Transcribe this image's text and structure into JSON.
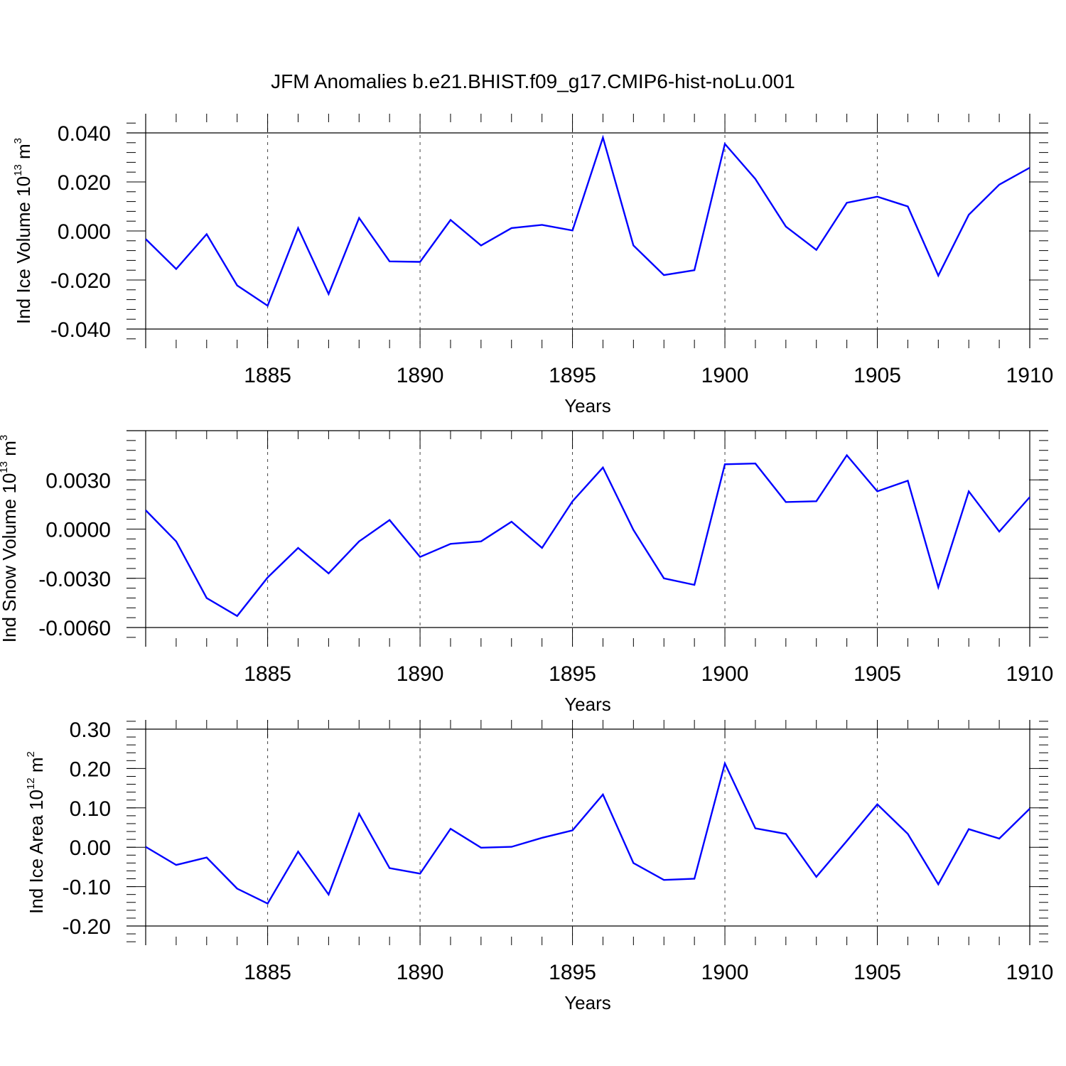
{
  "title": "JFM Anomalies b.e21.BHIST.f09_g17.CMIP6-hist-noLu.001",
  "line_color": "#0000ff",
  "chart_data": [
    {
      "type": "line",
      "ylabel": {
        "text": "Ind Ice Volume 10",
        "exp": "13",
        "unit": " m",
        "unit_exp": "3"
      },
      "xlabel": "Years",
      "xlim": [
        1881,
        1910
      ],
      "ylim": [
        -0.04,
        0.04
      ],
      "yticks": [
        -0.04,
        -0.02,
        0.0,
        0.02,
        0.04
      ],
      "ytick_labels": [
        "-0.040",
        "-0.020",
        "0.000",
        "0.020",
        "0.040"
      ],
      "xticks": [
        1885,
        1890,
        1895,
        1900,
        1905,
        1910
      ],
      "xtick_labels": [
        "1885",
        "1890",
        "1895",
        "1900",
        "1905",
        "1910"
      ],
      "x": [
        1881,
        1882,
        1883,
        1884,
        1885,
        1886,
        1887,
        1888,
        1889,
        1890,
        1891,
        1892,
        1893,
        1894,
        1895,
        1896,
        1897,
        1898,
        1899,
        1900,
        1901,
        1902,
        1903,
        1904,
        1905,
        1906,
        1907,
        1908,
        1909,
        1910
      ],
      "values": [
        -0.0033,
        -0.0155,
        -0.0013,
        -0.0222,
        -0.0305,
        0.0012,
        -0.0257,
        0.0053,
        -0.0124,
        -0.0126,
        0.0045,
        -0.0059,
        0.0012,
        0.0025,
        0.0002,
        0.0381,
        -0.0059,
        -0.018,
        -0.016,
        0.0355,
        0.0212,
        0.0018,
        -0.0077,
        0.0115,
        0.014,
        0.01,
        -0.0182,
        0.0066,
        0.0189,
        0.0258
      ]
    },
    {
      "type": "line",
      "ylabel": {
        "text": "Ind Snow Volume 10",
        "exp": "13",
        "unit": " m",
        "unit_exp": "3"
      },
      "xlabel": "Years",
      "xlim": [
        1881,
        1910
      ],
      "ylim": [
        -0.006,
        0.006
      ],
      "yticks": [
        -0.006,
        -0.003,
        0.0,
        0.003
      ],
      "ytick_labels": [
        "-0.0060",
        "-0.0030",
        "0.0000",
        "0.0030"
      ],
      "xticks": [
        1885,
        1890,
        1895,
        1900,
        1905,
        1910
      ],
      "xtick_labels": [
        "1885",
        "1890",
        "1895",
        "1900",
        "1905",
        "1910"
      ],
      "x": [
        1881,
        1882,
        1883,
        1884,
        1885,
        1886,
        1887,
        1888,
        1889,
        1890,
        1891,
        1892,
        1893,
        1894,
        1895,
        1896,
        1897,
        1898,
        1899,
        1900,
        1901,
        1902,
        1903,
        1904,
        1905,
        1906,
        1907,
        1908,
        1909,
        1910
      ],
      "values": [
        0.00115,
        -0.00075,
        -0.0042,
        -0.0053,
        -0.00295,
        -0.00115,
        -0.0027,
        -0.00075,
        0.00055,
        -0.0017,
        -0.0009,
        -0.00075,
        0.00045,
        -0.00115,
        0.0017,
        0.00375,
        -5e-05,
        -0.003,
        -0.0034,
        0.00395,
        0.004,
        0.00165,
        0.0017,
        0.0045,
        0.0023,
        0.00295,
        -0.00355,
        0.0023,
        -0.00015,
        0.00195
      ]
    },
    {
      "type": "line",
      "ylabel": {
        "text": "Ind Ice Area 10",
        "exp": "12",
        "unit": " m",
        "unit_exp": "2"
      },
      "xlabel": "Years",
      "xlim": [
        1881,
        1910
      ],
      "ylim": [
        -0.2,
        0.3
      ],
      "yticks": [
        -0.2,
        -0.1,
        0.0,
        0.1,
        0.2,
        0.3
      ],
      "ytick_labels": [
        "-0.20",
        "-0.10",
        "0.00",
        "0.10",
        "0.20",
        "0.30"
      ],
      "xticks": [
        1885,
        1890,
        1895,
        1900,
        1905,
        1910
      ],
      "xtick_labels": [
        "1885",
        "1890",
        "1895",
        "1900",
        "1905",
        "1910"
      ],
      "x": [
        1881,
        1882,
        1883,
        1884,
        1885,
        1886,
        1887,
        1888,
        1889,
        1890,
        1891,
        1892,
        1893,
        1894,
        1895,
        1896,
        1897,
        1898,
        1899,
        1900,
        1901,
        1902,
        1903,
        1904,
        1905,
        1906,
        1907,
        1908,
        1909,
        1910
      ],
      "values": [
        0.001,
        -0.045,
        -0.026,
        -0.105,
        -0.143,
        -0.011,
        -0.12,
        0.085,
        -0.053,
        -0.067,
        0.047,
        -0.001,
        0.001,
        0.024,
        0.043,
        0.134,
        -0.04,
        -0.083,
        -0.08,
        0.213,
        0.048,
        0.034,
        -0.075,
        0.016,
        0.109,
        0.034,
        -0.094,
        0.046,
        0.022,
        0.098
      ]
    }
  ]
}
